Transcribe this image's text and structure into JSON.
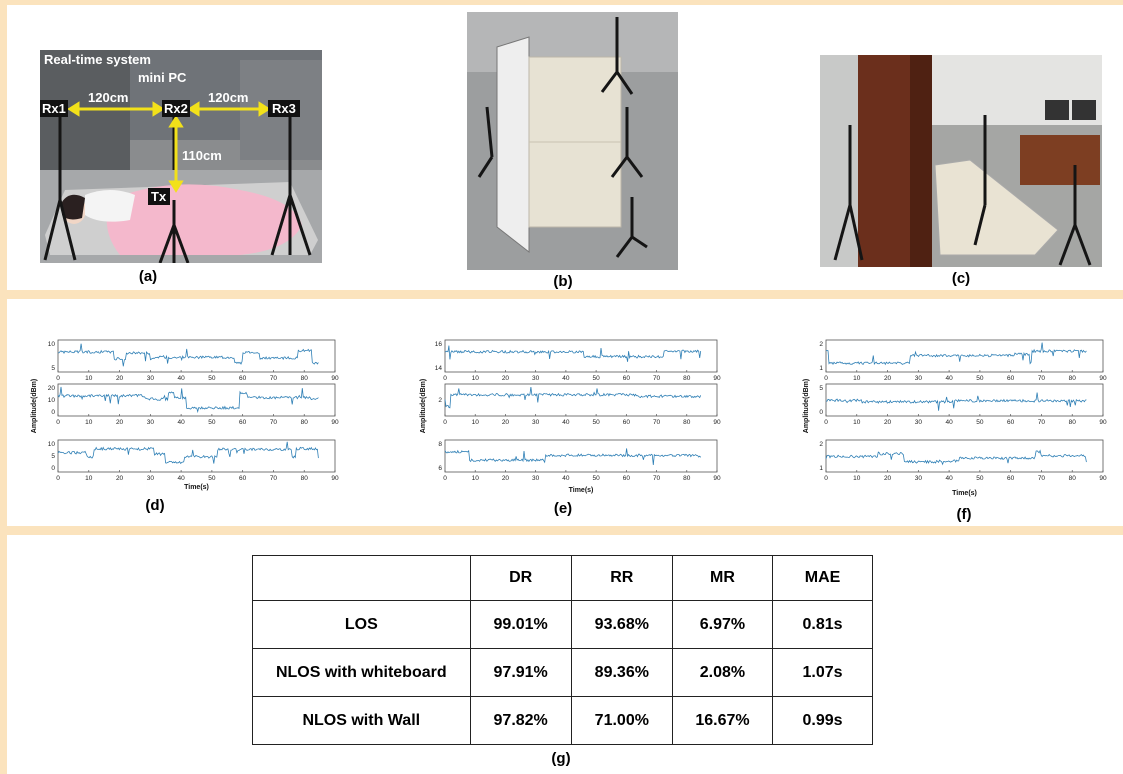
{
  "photo_a": {
    "caption": "(a)",
    "annotations": {
      "system": "Real-time system",
      "pc": "mini PC",
      "rx1": "Rx1",
      "rx2": "Rx2",
      "rx3": "Rx3",
      "tx": "Tx",
      "d12": "120cm",
      "d23": "120cm",
      "dtx": "110cm"
    }
  },
  "photo_b": {
    "caption": "(b)"
  },
  "photo_c": {
    "caption": "(c)"
  },
  "plots": [
    {
      "caption": "(d)",
      "ylabel": "Amplitude(dBm)",
      "xlabel": "Time(s)",
      "xticks": [
        "0",
        "10",
        "20",
        "30",
        "40",
        "50",
        "60",
        "70",
        "80",
        "90"
      ],
      "rows": [
        {
          "yticks": [
            "10",
            "5"
          ]
        },
        {
          "yticks": [
            "20",
            "10",
            "0"
          ]
        },
        {
          "yticks": [
            "10",
            "5",
            "0"
          ]
        }
      ]
    },
    {
      "caption": "(e)",
      "ylabel": "Amplitude(dBm)",
      "xlabel": "Time(s)",
      "xticks": [
        "0",
        "10",
        "20",
        "30",
        "40",
        "50",
        "60",
        "70",
        "80",
        "90"
      ],
      "rows": [
        {
          "yticks": [
            "16",
            "14"
          ]
        },
        {
          "yticks": [
            "2"
          ]
        },
        {
          "yticks": [
            "8",
            "6"
          ]
        }
      ]
    },
    {
      "caption": "(f)",
      "ylabel": "Amplitude(dBm)",
      "xlabel": "Time(s)",
      "xticks": [
        "0",
        "10",
        "20",
        "30",
        "40",
        "50",
        "60",
        "70",
        "80",
        "90"
      ],
      "rows": [
        {
          "yticks": [
            "2",
            "1"
          ]
        },
        {
          "yticks": [
            "5",
            "0"
          ]
        },
        {
          "yticks": [
            "2",
            "1"
          ]
        }
      ]
    }
  ],
  "table": {
    "caption": "(g)",
    "headers": [
      "",
      "DR",
      "RR",
      "MR",
      "MAE"
    ],
    "rows": [
      [
        "LOS",
        "99.01%",
        "93.68%",
        "6.97%",
        "0.81s"
      ],
      [
        "NLOS with whiteboard",
        "97.91%",
        "89.36%",
        "2.08%",
        "1.07s"
      ],
      [
        "NLOS with Wall",
        "97.82%",
        "71.00%",
        "16.67%",
        "0.99s"
      ]
    ]
  },
  "colors": {
    "accent": "#fbe3bd",
    "signal": "#2e7fb5",
    "annotation": "#f2e11a"
  }
}
